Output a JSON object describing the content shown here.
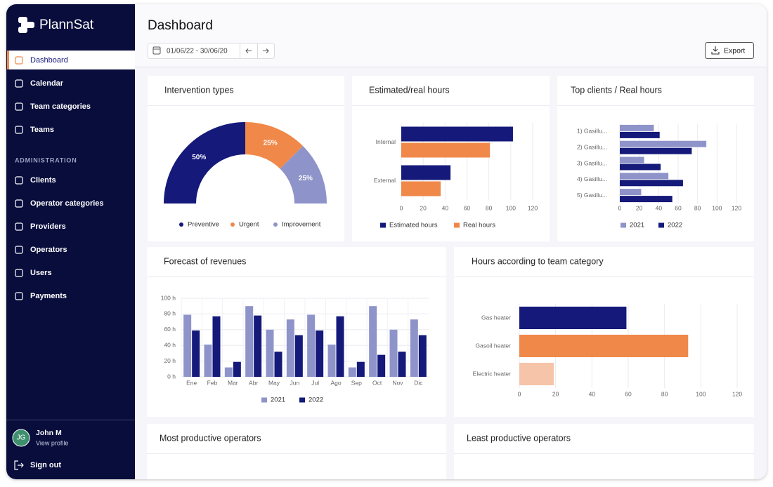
{
  "sidebar": {
    "brand": "PlannSat",
    "nav": [
      "Dashboard",
      "Calendar",
      "Team categories",
      "Teams"
    ],
    "section": "ADMINISTRATION",
    "admin_nav": [
      "Clients",
      "Operator categories",
      "Providers",
      "Operators",
      "Users",
      "Payments"
    ],
    "user": {
      "initials": "JG",
      "name": "John M",
      "link": "View profile"
    },
    "sign_out": "Sign out"
  },
  "header": {
    "title": "Dashboard",
    "date_range": "01/06/22 - 30/06/20",
    "export": "Export"
  },
  "chart_data": [
    {
      "type": "semi-donut",
      "title": "Intervention types",
      "categories": [
        "Preventive",
        "Urgent",
        "Improvement"
      ],
      "values": [
        50,
        25,
        25
      ],
      "value_labels": [
        "50%",
        "25%",
        "25%"
      ],
      "colors": [
        "#14197a",
        "#f0884a",
        "#8e94c9"
      ]
    },
    {
      "type": "bar",
      "orientation": "horizontal",
      "title": "Estimated/real hours",
      "categories": [
        "Internal",
        "External"
      ],
      "series": [
        {
          "name": "Estimated hours",
          "color": "#14197a",
          "values": [
            102,
            45
          ]
        },
        {
          "name": "Real hours",
          "color": "#f0884a",
          "values": [
            81,
            36
          ]
        }
      ],
      "xlim": [
        0,
        120
      ],
      "xticks": [
        0,
        20,
        40,
        60,
        80,
        100,
        120
      ],
      "grid": true
    },
    {
      "type": "bar",
      "orientation": "horizontal",
      "title": "Top clients / Real hours",
      "categories": [
        "1) Gasillu...",
        "2) Gasillu...",
        "3) Gasillu...",
        "4) Gasillu...",
        "5) Gasillu..."
      ],
      "series": [
        {
          "name": "2021",
          "color": "#8e94c9",
          "values": [
            35,
            89,
            25,
            50,
            22
          ]
        },
        {
          "name": "2022",
          "color": "#14197a",
          "values": [
            41,
            74,
            42,
            65,
            54
          ]
        }
      ],
      "xlim": [
        0,
        120
      ],
      "xticks": [
        0,
        20,
        40,
        60,
        80,
        100,
        120
      ],
      "grid": true
    },
    {
      "type": "bar",
      "orientation": "vertical",
      "title": "Forecast of revenues",
      "categories": [
        "Ene",
        "Feb",
        "Mar",
        "Abr",
        "May",
        "Jun",
        "Jul",
        "Ago",
        "Sep",
        "Oct",
        "Nov",
        "Dic"
      ],
      "series": [
        {
          "name": "2021",
          "color": "#8e94c9",
          "values": [
            79,
            41,
            12,
            90,
            60,
            73,
            79,
            41,
            12,
            90,
            60,
            73
          ]
        },
        {
          "name": "2022",
          "color": "#14197a",
          "values": [
            59,
            77,
            19,
            78,
            32,
            53,
            59,
            77,
            19,
            28,
            32,
            53
          ]
        }
      ],
      "ylim": [
        0,
        100
      ],
      "yticks": [
        {
          "value": 0,
          "label": "0 h"
        },
        {
          "value": 20,
          "label": "20 h"
        },
        {
          "value": 40,
          "label": "40 h"
        },
        {
          "value": 60,
          "label": "60 h"
        },
        {
          "value": 80,
          "label": "80 h"
        },
        {
          "value": 100,
          "label": "100 h"
        }
      ],
      "grid": true
    },
    {
      "type": "bar",
      "orientation": "horizontal",
      "title": "Hours according to team category",
      "categories": [
        "Gas heater",
        "Gasoil heater",
        "Electric heater"
      ],
      "values": [
        59,
        93,
        19
      ],
      "colors": [
        "#14197a",
        "#f0884a",
        "#f6c4a8"
      ],
      "xlim": [
        0,
        120
      ],
      "xticks": [
        0,
        20,
        40,
        60,
        80,
        100,
        120
      ],
      "grid": true
    }
  ],
  "panels": [
    {
      "title": "Most productive operators"
    },
    {
      "title": "Least productive operators"
    }
  ]
}
